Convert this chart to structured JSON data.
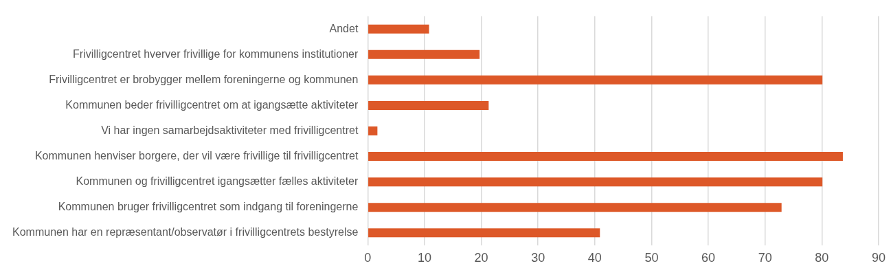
{
  "chart_data": {
    "type": "bar",
    "orientation": "horizontal",
    "categories": [
      "Andet",
      "Frivilligcentret hverver frivillige for kommunens institutioner",
      "Frivilligcentret er brobygger mellem foreningerne og kommunen",
      "Kommunen beder frivilligcentret om at igangsætte aktiviteter",
      "Vi har ingen samarbejdsaktiviteter med frivilligcentret",
      "Kommunen henviser borgere, der vil være frivillige til frivilligcentret",
      "Kommunen og frivilligcentret igangsætter fælles aktiviteter",
      "Kommunen bruger frivilligcentret som indgang til foreningerne",
      "Kommunen har en repræsentant/observatør i frivilligcentrets bestyrelse"
    ],
    "values": [
      10.8,
      19.7,
      80.1,
      21.3,
      1.7,
      83.7,
      80.1,
      72.9,
      40.9
    ],
    "color": "#dd5828",
    "xlim": [
      0,
      90
    ],
    "xticks": [
      0,
      10,
      20,
      30,
      40,
      50,
      60,
      70,
      80,
      90
    ],
    "grid": "x"
  }
}
